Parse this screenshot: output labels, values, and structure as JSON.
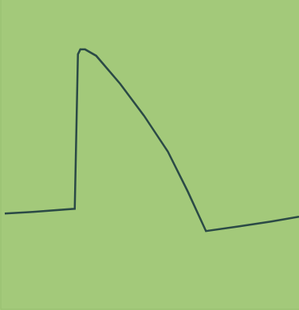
{
  "chart_data": {
    "type": "line",
    "x": [
      5,
      40,
      93,
      97,
      100,
      106,
      120,
      150,
      180,
      210,
      235,
      258,
      300,
      340,
      375
    ],
    "values": [
      120,
      122,
      126,
      320,
      326,
      326,
      318,
      283,
      243,
      198,
      148,
      98,
      104,
      110,
      116
    ],
    "color": "#2b4a46",
    "xlim": [
      0,
      375
    ],
    "ylim": [
      0,
      388
    ],
    "grid": false,
    "tick_labels": false
  }
}
